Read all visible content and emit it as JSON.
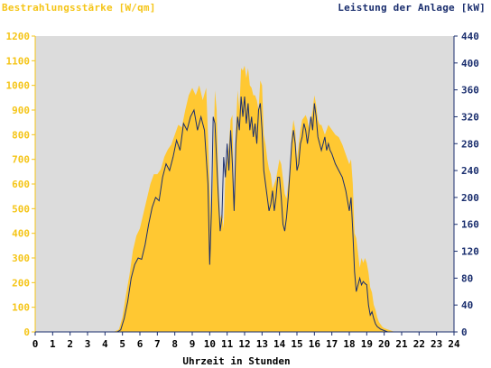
{
  "chart_data": {
    "type": "area",
    "left_axis_title": "Bestrahlungsstärke [W/qm]",
    "right_axis_title": "Leistung der Anlage [kW]",
    "xlabel": "Uhrzeit in Stunden",
    "x_ticks": [
      "0",
      "1",
      "2",
      "3",
      "4",
      "5",
      "6",
      "7",
      "8",
      "9",
      "10",
      "11",
      "12",
      "13",
      "14",
      "15",
      "16",
      "17",
      "18",
      "19",
      "20",
      "21",
      "22",
      "23",
      "24"
    ],
    "left_ticks": [
      "0",
      "100",
      "200",
      "300",
      "400",
      "500",
      "600",
      "700",
      "800",
      "900",
      "1000",
      "1100",
      "1200"
    ],
    "right_ticks": [
      "0",
      "40",
      "80",
      "120",
      "160",
      "200",
      "240",
      "280",
      "320",
      "360",
      "400",
      "440"
    ],
    "xlim": [
      0,
      24
    ],
    "ylim_left": [
      0,
      1200
    ],
    "ylim_right": [
      0,
      440
    ],
    "series": [
      {
        "name": "Bestrahlungsstärke [W/qm]",
        "axis": "left",
        "style": "area",
        "color": "#ffc832",
        "points": [
          [
            0,
            0
          ],
          [
            4.5,
            0
          ],
          [
            4.8,
            10
          ],
          [
            5.0,
            60
          ],
          [
            5.2,
            150
          ],
          [
            5.4,
            230
          ],
          [
            5.6,
            330
          ],
          [
            5.8,
            390
          ],
          [
            6.0,
            420
          ],
          [
            6.2,
            480
          ],
          [
            6.4,
            540
          ],
          [
            6.6,
            600
          ],
          [
            6.8,
            640
          ],
          [
            7.0,
            640
          ],
          [
            7.2,
            660
          ],
          [
            7.4,
            710
          ],
          [
            7.6,
            740
          ],
          [
            7.8,
            760
          ],
          [
            8.0,
            800
          ],
          [
            8.2,
            840
          ],
          [
            8.4,
            830
          ],
          [
            8.6,
            900
          ],
          [
            8.8,
            960
          ],
          [
            9.0,
            990
          ],
          [
            9.2,
            960
          ],
          [
            9.4,
            1000
          ],
          [
            9.6,
            940
          ],
          [
            9.8,
            990
          ],
          [
            9.9,
            800
          ],
          [
            10.0,
            600
          ],
          [
            10.1,
            440
          ],
          [
            10.2,
            650
          ],
          [
            10.3,
            980
          ],
          [
            10.4,
            900
          ],
          [
            10.5,
            600
          ],
          [
            10.6,
            460
          ],
          [
            10.7,
            480
          ],
          [
            10.8,
            420
          ],
          [
            10.9,
            650
          ],
          [
            11.0,
            700
          ],
          [
            11.1,
            750
          ],
          [
            11.2,
            860
          ],
          [
            11.3,
            880
          ],
          [
            11.4,
            500
          ],
          [
            11.5,
            820
          ],
          [
            11.6,
            980
          ],
          [
            11.7,
            900
          ],
          [
            11.8,
            1070
          ],
          [
            11.9,
            1060
          ],
          [
            12.0,
            1080
          ],
          [
            12.1,
            1030
          ],
          [
            12.2,
            1070
          ],
          [
            12.3,
            1000
          ],
          [
            12.4,
            990
          ],
          [
            12.5,
            960
          ],
          [
            12.6,
            960
          ],
          [
            12.7,
            940
          ],
          [
            12.8,
            900
          ],
          [
            12.9,
            1020
          ],
          [
            13.0,
            1000
          ],
          [
            13.1,
            800
          ],
          [
            13.2,
            760
          ],
          [
            13.3,
            700
          ],
          [
            13.4,
            660
          ],
          [
            13.5,
            640
          ],
          [
            13.6,
            580
          ],
          [
            13.7,
            600
          ],
          [
            13.8,
            620
          ],
          [
            13.9,
            660
          ],
          [
            14.0,
            700
          ],
          [
            14.1,
            680
          ],
          [
            14.2,
            620
          ],
          [
            14.3,
            560
          ],
          [
            14.4,
            540
          ],
          [
            14.5,
            600
          ],
          [
            14.6,
            660
          ],
          [
            14.7,
            800
          ],
          [
            14.8,
            860
          ],
          [
            14.9,
            820
          ],
          [
            15.0,
            700
          ],
          [
            15.1,
            760
          ],
          [
            15.2,
            820
          ],
          [
            15.3,
            860
          ],
          [
            15.4,
            870
          ],
          [
            15.5,
            880
          ],
          [
            15.6,
            860
          ],
          [
            15.7,
            820
          ],
          [
            15.8,
            860
          ],
          [
            15.9,
            900
          ],
          [
            16.0,
            960
          ],
          [
            16.1,
            920
          ],
          [
            16.2,
            860
          ],
          [
            16.3,
            840
          ],
          [
            16.4,
            840
          ],
          [
            16.5,
            820
          ],
          [
            16.6,
            800
          ],
          [
            16.7,
            820
          ],
          [
            16.8,
            840
          ],
          [
            16.9,
            830
          ],
          [
            17.0,
            820
          ],
          [
            17.2,
            800
          ],
          [
            17.4,
            790
          ],
          [
            17.6,
            760
          ],
          [
            17.8,
            720
          ],
          [
            18.0,
            680
          ],
          [
            18.1,
            700
          ],
          [
            18.2,
            600
          ],
          [
            18.3,
            400
          ],
          [
            18.4,
            380
          ],
          [
            18.5,
            320
          ],
          [
            18.6,
            260
          ],
          [
            18.7,
            300
          ],
          [
            18.8,
            280
          ],
          [
            18.9,
            300
          ],
          [
            19.0,
            280
          ],
          [
            19.1,
            240
          ],
          [
            19.2,
            180
          ],
          [
            19.3,
            160
          ],
          [
            19.4,
            110
          ],
          [
            19.5,
            90
          ],
          [
            19.6,
            60
          ],
          [
            19.7,
            40
          ],
          [
            19.8,
            30
          ],
          [
            19.9,
            20
          ],
          [
            20.0,
            15
          ],
          [
            20.2,
            10
          ],
          [
            20.4,
            5
          ],
          [
            20.6,
            0
          ],
          [
            24,
            0
          ]
        ]
      },
      {
        "name": "Leistung der Anlage [kW]",
        "axis": "right",
        "style": "line",
        "color": "#1a2e6e",
        "points": [
          [
            0,
            0
          ],
          [
            4.7,
            0
          ],
          [
            4.9,
            3
          ],
          [
            5.1,
            20
          ],
          [
            5.3,
            45
          ],
          [
            5.5,
            80
          ],
          [
            5.7,
            100
          ],
          [
            5.9,
            110
          ],
          [
            6.1,
            108
          ],
          [
            6.3,
            130
          ],
          [
            6.5,
            160
          ],
          [
            6.7,
            185
          ],
          [
            6.9,
            200
          ],
          [
            7.1,
            195
          ],
          [
            7.3,
            230
          ],
          [
            7.5,
            250
          ],
          [
            7.7,
            240
          ],
          [
            7.9,
            260
          ],
          [
            8.1,
            285
          ],
          [
            8.3,
            270
          ],
          [
            8.5,
            310
          ],
          [
            8.7,
            300
          ],
          [
            8.9,
            320
          ],
          [
            9.1,
            330
          ],
          [
            9.3,
            300
          ],
          [
            9.5,
            320
          ],
          [
            9.7,
            300
          ],
          [
            9.9,
            220
          ],
          [
            10.0,
            100
          ],
          [
            10.1,
            180
          ],
          [
            10.2,
            320
          ],
          [
            10.3,
            310
          ],
          [
            10.5,
            200
          ],
          [
            10.6,
            150
          ],
          [
            10.7,
            170
          ],
          [
            10.8,
            260
          ],
          [
            10.9,
            230
          ],
          [
            11.0,
            280
          ],
          [
            11.1,
            240
          ],
          [
            11.2,
            300
          ],
          [
            11.3,
            250
          ],
          [
            11.4,
            180
          ],
          [
            11.5,
            280
          ],
          [
            11.6,
            320
          ],
          [
            11.7,
            300
          ],
          [
            11.8,
            350
          ],
          [
            11.9,
            320
          ],
          [
            12.0,
            350
          ],
          [
            12.1,
            310
          ],
          [
            12.2,
            340
          ],
          [
            12.3,
            300
          ],
          [
            12.4,
            320
          ],
          [
            12.5,
            290
          ],
          [
            12.6,
            310
          ],
          [
            12.7,
            280
          ],
          [
            12.8,
            330
          ],
          [
            12.9,
            340
          ],
          [
            13.0,
            300
          ],
          [
            13.1,
            240
          ],
          [
            13.2,
            220
          ],
          [
            13.3,
            200
          ],
          [
            13.4,
            180
          ],
          [
            13.5,
            190
          ],
          [
            13.6,
            210
          ],
          [
            13.7,
            180
          ],
          [
            13.8,
            200
          ],
          [
            13.9,
            230
          ],
          [
            14.0,
            230
          ],
          [
            14.1,
            200
          ],
          [
            14.2,
            160
          ],
          [
            14.3,
            150
          ],
          [
            14.4,
            170
          ],
          [
            14.5,
            200
          ],
          [
            14.6,
            240
          ],
          [
            14.7,
            280
          ],
          [
            14.8,
            300
          ],
          [
            14.9,
            280
          ],
          [
            15.0,
            240
          ],
          [
            15.1,
            250
          ],
          [
            15.2,
            280
          ],
          [
            15.3,
            290
          ],
          [
            15.4,
            310
          ],
          [
            15.5,
            300
          ],
          [
            15.6,
            280
          ],
          [
            15.7,
            300
          ],
          [
            15.8,
            320
          ],
          [
            15.9,
            300
          ],
          [
            16.0,
            340
          ],
          [
            16.1,
            320
          ],
          [
            16.2,
            290
          ],
          [
            16.3,
            280
          ],
          [
            16.4,
            270
          ],
          [
            16.5,
            280
          ],
          [
            16.6,
            290
          ],
          [
            16.7,
            270
          ],
          [
            16.8,
            280
          ],
          [
            16.9,
            270
          ],
          [
            17.0,
            265
          ],
          [
            17.2,
            250
          ],
          [
            17.4,
            240
          ],
          [
            17.6,
            230
          ],
          [
            17.8,
            210
          ],
          [
            18.0,
            180
          ],
          [
            18.1,
            200
          ],
          [
            18.2,
            150
          ],
          [
            18.3,
            90
          ],
          [
            18.4,
            60
          ],
          [
            18.5,
            70
          ],
          [
            18.6,
            80
          ],
          [
            18.7,
            70
          ],
          [
            18.8,
            75
          ],
          [
            18.9,
            72
          ],
          [
            19.0,
            70
          ],
          [
            19.1,
            40
          ],
          [
            19.2,
            25
          ],
          [
            19.3,
            30
          ],
          [
            19.4,
            20
          ],
          [
            19.5,
            12
          ],
          [
            19.6,
            8
          ],
          [
            19.8,
            4
          ],
          [
            20.0,
            2
          ],
          [
            20.2,
            0
          ],
          [
            24,
            0
          ]
        ]
      }
    ]
  }
}
